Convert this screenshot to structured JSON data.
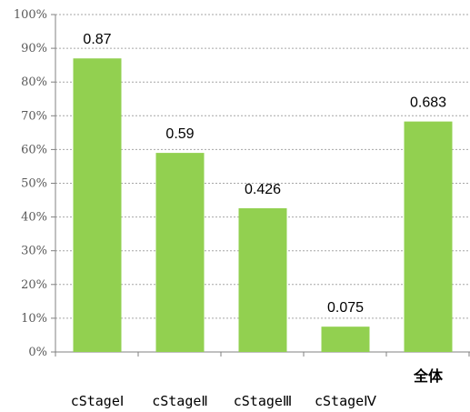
{
  "chart_data": {
    "type": "bar",
    "categories": [
      "cStageⅠ",
      "cStageⅡ",
      "cStageⅢ",
      "cStageⅣ",
      "全体"
    ],
    "values": [
      0.87,
      0.59,
      0.426,
      0.075,
      0.683
    ],
    "data_labels": [
      "0.87",
      "0.59",
      "0.426",
      "0.075",
      "0.683"
    ],
    "y_ticks": [
      "0%",
      "10%",
      "20%",
      "30%",
      "40%",
      "50%",
      "60%",
      "70%",
      "80%",
      "90%",
      "100%"
    ],
    "ylim": [
      0,
      1
    ],
    "grid": true,
    "bar_color": "#92d050",
    "title": "",
    "xlabel": "",
    "ylabel": ""
  }
}
